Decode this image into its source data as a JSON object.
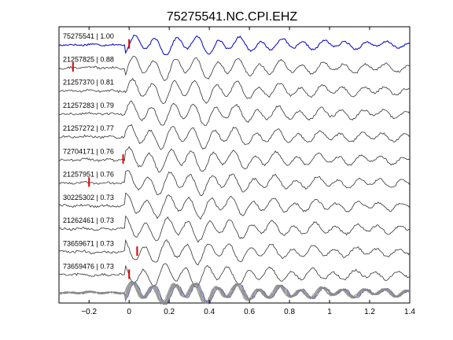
{
  "chart_data": {
    "type": "line",
    "title": "75275541.NC.CPI.EHZ",
    "xlabel": "",
    "ylabel": "",
    "xlim": [
      -0.35,
      1.4
    ],
    "xticks": [
      -0.2,
      0,
      0.2,
      0.4,
      0.6,
      0.8,
      1,
      1.2,
      1.4
    ],
    "xtick_labels": [
      "−0.2",
      "0",
      "0.2",
      "0.4",
      "0.6",
      "0.8",
      "1",
      "1.2",
      "1.4"
    ],
    "grid": false,
    "colors": {
      "reference": "#0000cc",
      "trace": "#333333",
      "pick": "#dd0000",
      "stack": "#888888"
    },
    "series": [
      {
        "label": "75275541 | 1.00",
        "pick_time": 0.0,
        "color": "#0000cc"
      },
      {
        "label": "21257825 | 0.88",
        "pick_time": -0.28,
        "color": "#333333"
      },
      {
        "label": "21257370 | 0.81",
        "pick_time": null,
        "color": "#333333"
      },
      {
        "label": "21257283 | 0.79",
        "pick_time": null,
        "color": "#333333"
      },
      {
        "label": "21257272 | 0.77",
        "pick_time": null,
        "color": "#333333"
      },
      {
        "label": "72704171 | 0.76",
        "pick_time": -0.03,
        "color": "#333333"
      },
      {
        "label": "21257951 | 0.76",
        "pick_time": -0.2,
        "color": "#333333"
      },
      {
        "label": "30225302 | 0.73",
        "pick_time": null,
        "color": "#333333"
      },
      {
        "label": "21262461 | 0.73",
        "pick_time": null,
        "color": "#333333"
      },
      {
        "label": "73659671 | 0.73",
        "pick_time": 0.04,
        "color": "#333333"
      },
      {
        "label": "73659476 | 0.73",
        "pick_time": 0.0,
        "color": "#333333"
      }
    ],
    "stack": {
      "label": "",
      "trace_count": 11
    }
  }
}
